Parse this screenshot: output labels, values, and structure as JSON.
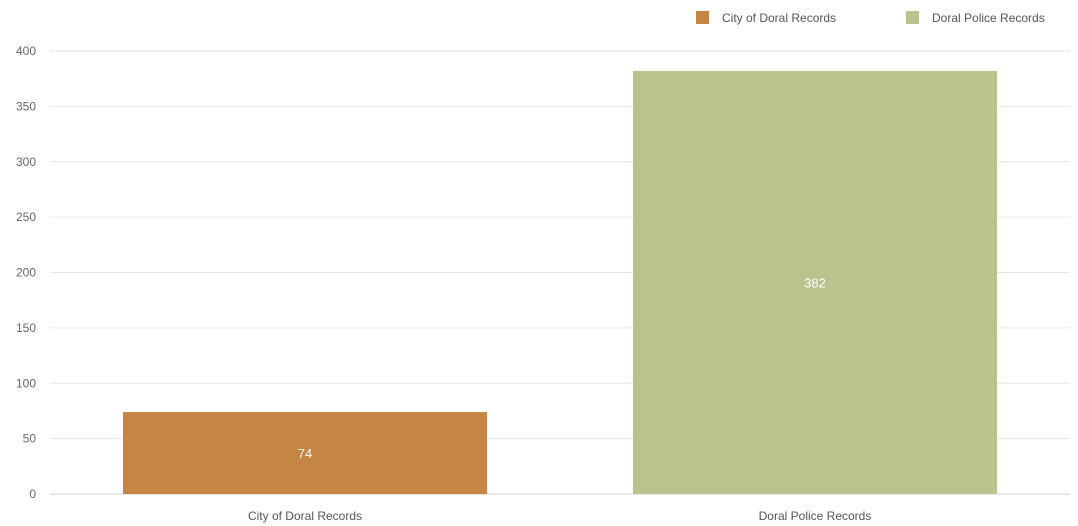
{
  "chart_data": {
    "type": "bar",
    "categories": [
      "City of Doral Records",
      "Doral Police Records"
    ],
    "values": [
      74,
      382
    ],
    "data_labels": [
      "74",
      "382"
    ],
    "colors": [
      "#c48545",
      "#b9c38d"
    ],
    "legend": {
      "position": "top-right",
      "entries": [
        {
          "label": "City of Doral Records",
          "color": "#c48545"
        },
        {
          "label": "Doral Police Records",
          "color": "#b9c38d"
        }
      ]
    },
    "yticks": [
      0,
      50,
      100,
      150,
      200,
      250,
      300,
      350,
      400
    ],
    "ylim": [
      0,
      400
    ],
    "grid": true,
    "title": "",
    "xlabel": "",
    "ylabel": ""
  }
}
